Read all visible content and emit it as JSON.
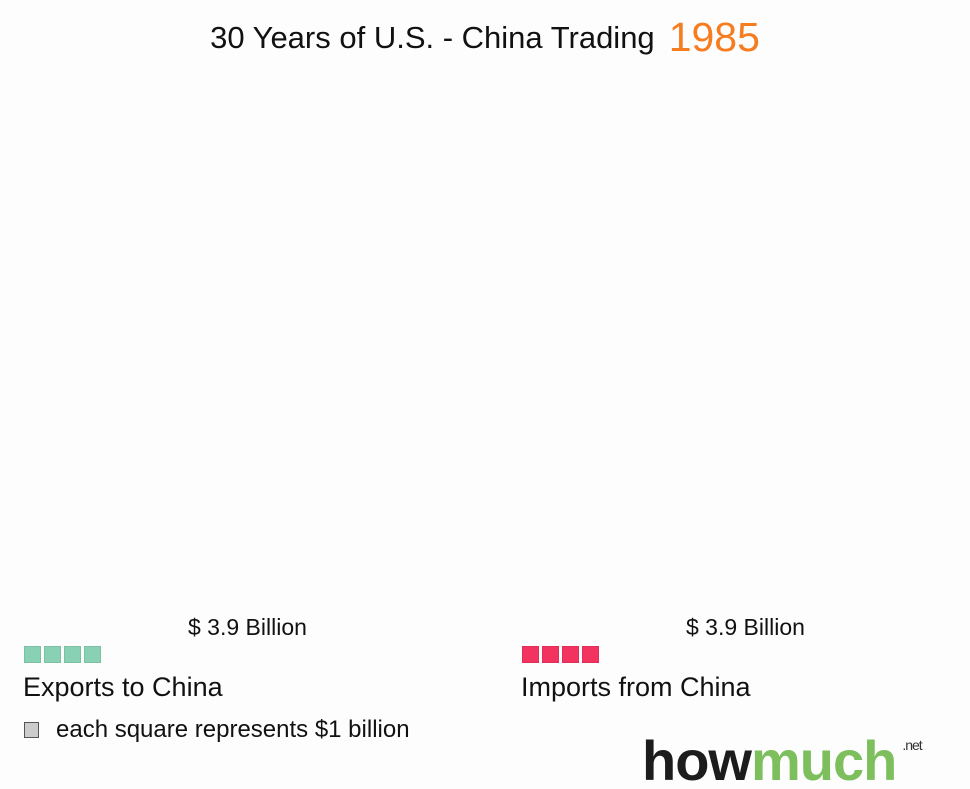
{
  "title": "30 Years of U.S. - China Trading",
  "year": "1985",
  "chart_data": {
    "type": "unit",
    "unit_value_billion": 1,
    "series": [
      {
        "name": "Exports to China",
        "value_label": "$ 3.9 Billion",
        "value": 3.9,
        "squares": 4,
        "color": "#88d1b4"
      },
      {
        "name": "Imports from China",
        "value_label": "$ 3.9 Billion",
        "value": 3.9,
        "squares": 4,
        "color": "#f2335f"
      }
    ],
    "legend": "each square represents $1 billion"
  },
  "logo": {
    "how": "how",
    "much": "much",
    "net": ".net"
  }
}
